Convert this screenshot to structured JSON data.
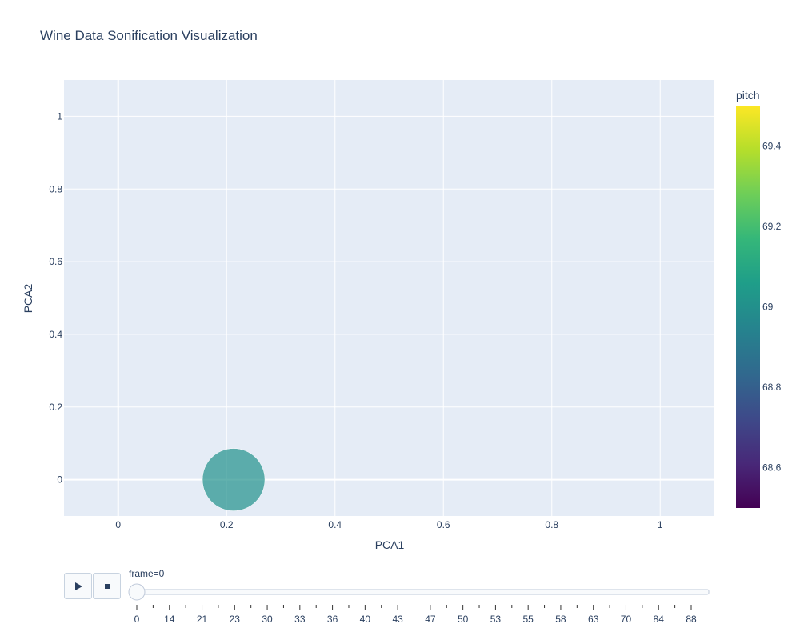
{
  "title": "Wine Data Sonification Visualization",
  "colors": {
    "plot_bg": "#e5ecf6",
    "grid": "#ffffff",
    "text": "#2a3f5f",
    "marker": "#21918c"
  },
  "chart_data": {
    "type": "scatter",
    "title": "Wine Data Sonification Visualization",
    "xlabel": "PCA1",
    "ylabel": "PCA2",
    "xlim": [
      -0.1,
      1.1
    ],
    "ylim": [
      -0.1,
      1.1
    ],
    "xticks": [
      0,
      0.2,
      0.4,
      0.6,
      0.8,
      1
    ],
    "xtick_labels": [
      "0",
      "0.2",
      "0.4",
      "0.6",
      "0.8",
      "1"
    ],
    "yticks": [
      0,
      0.2,
      0.4,
      0.6,
      0.8,
      1
    ],
    "ytick_labels": [
      "0",
      "0.2",
      "0.4",
      "0.6",
      "0.8",
      "1"
    ],
    "grid": true,
    "points": [
      {
        "x": 0.213,
        "y": 0.0,
        "pitch": 69.0
      }
    ],
    "colorbar": {
      "title": "pitch",
      "range": [
        68.5,
        69.5
      ],
      "ticks": [
        68.6,
        68.8,
        69,
        69.2,
        69.4
      ],
      "tick_labels": [
        "68.6",
        "68.8",
        "69",
        "69.2",
        "69.4"
      ],
      "colorscale": "viridis"
    }
  },
  "slider": {
    "label": "frame=0",
    "current_index": 0,
    "tick_labels": [
      "0",
      "14",
      "21",
      "23",
      "30",
      "33",
      "36",
      "40",
      "43",
      "47",
      "50",
      "53",
      "55",
      "58",
      "63",
      "70",
      "84",
      "88"
    ]
  },
  "controls": {
    "play_icon": "play-icon",
    "stop_icon": "stop-icon"
  }
}
